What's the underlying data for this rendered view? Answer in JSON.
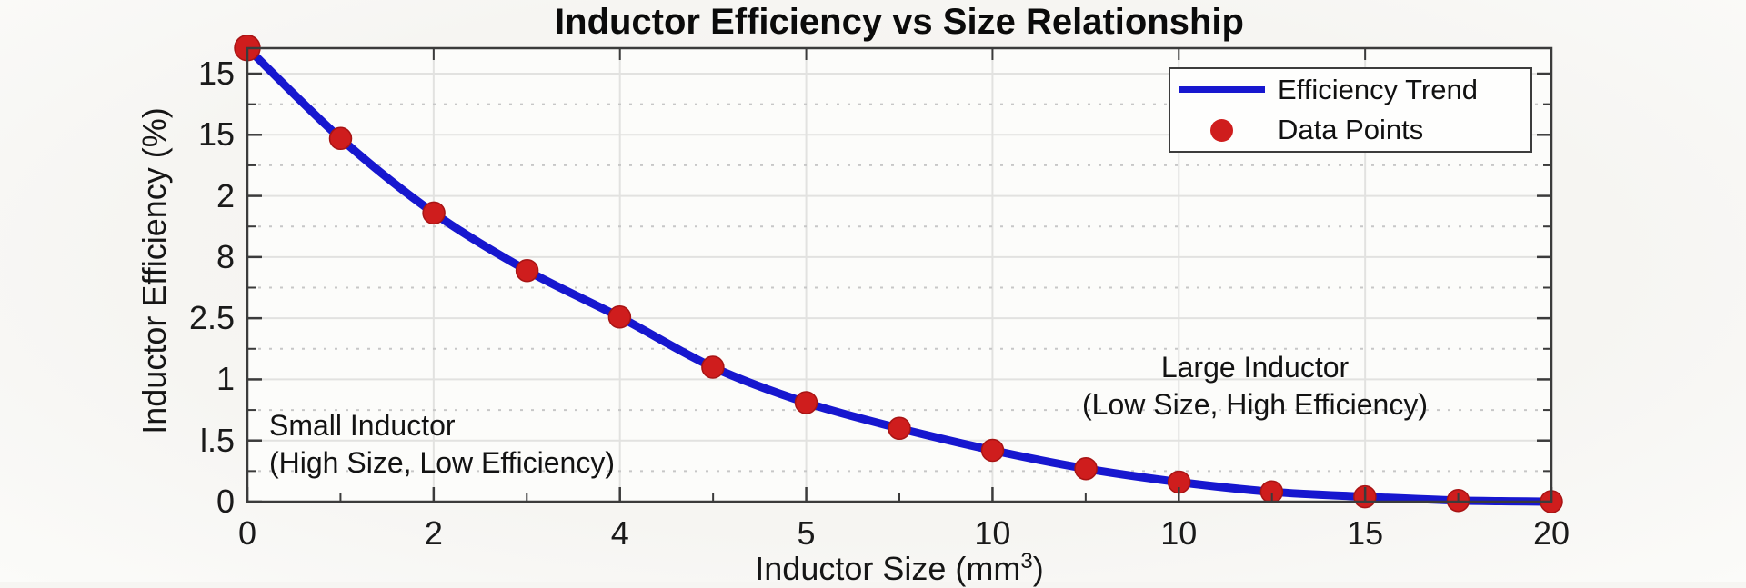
{
  "chart": {
    "title": "Inductor Efficiency vs Size Relationship",
    "y_axis": {
      "label": "Inductor Efficiency (%)",
      "tick_labels": [
        "15",
        "15",
        "2",
        "8",
        "2.5",
        "1",
        "l.5",
        "0"
      ]
    },
    "x_axis": {
      "label_prefix": "Inductor Size (mm",
      "label_sup": "3",
      "label_suffix": ")",
      "tick_labels": [
        "0",
        "2",
        "4",
        "5",
        "10",
        "10",
        "15",
        "20"
      ]
    },
    "annotations": {
      "small": {
        "line1": "Small Inductor",
        "line2": "(High Size, Low Efficiency)"
      },
      "large": {
        "line1": "Large Inductor",
        "line2": "(Low Size, High Efficiency)"
      }
    },
    "legend": {
      "item1_label": "Efficiency Trend",
      "item2_label": "Data Points"
    },
    "colors": {
      "line": "#1717cf",
      "marker": "#cf1d1d",
      "marker_edge": "#a81414",
      "grid_major": "#e2e2e0",
      "grid_minor": "#c7c7c7",
      "axis": "#3b3b3b",
      "plot_background": "#fcfcfa"
    }
  },
  "chart_data": {
    "type": "line",
    "title": "Inductor Efficiency vs Size Relationship",
    "xlabel": "Inductor Size (mm^3)",
    "ylabel": "Inductor Efficiency (%)",
    "x": [
      0,
      1.43,
      2.86,
      4.29,
      5.71,
      7.14,
      8.57,
      10,
      11.43,
      12.86,
      14.29,
      15.71,
      17.14,
      18.57,
      20
    ],
    "series": [
      {
        "name": "Efficiency Trend",
        "style": "solid-line",
        "values": [
          3.71,
          2.97,
          2.36,
          1.89,
          1.51,
          1.1,
          0.81,
          0.6,
          0.42,
          0.27,
          0.16,
          0.08,
          0.04,
          0.01,
          0
        ]
      },
      {
        "name": "Data Points",
        "style": "markers-on-same-curve",
        "values": [
          3.71,
          2.97,
          2.36,
          1.89,
          1.51,
          1.1,
          0.81,
          0.6,
          0.42,
          0.27,
          0.16,
          0.08,
          0.04,
          0.01,
          0
        ]
      }
    ],
    "xlim": [
      0,
      20
    ],
    "ylim": [
      0,
      3.5
    ],
    "x_tick_labels_shown": [
      "0",
      "2",
      "4",
      "5",
      "10",
      "10",
      "15",
      "20"
    ],
    "y_tick_labels_shown": [
      "15",
      "15",
      "2",
      "8",
      "2.5",
      "1",
      "l.5",
      "0"
    ],
    "grid": true,
    "minor_grid_horizontal_dotted": true,
    "legend_position": "upper right",
    "annotations": [
      "Small Inductor (High Size, Low Efficiency)",
      "Large Inductor (Low Size, High Efficiency)"
    ]
  }
}
